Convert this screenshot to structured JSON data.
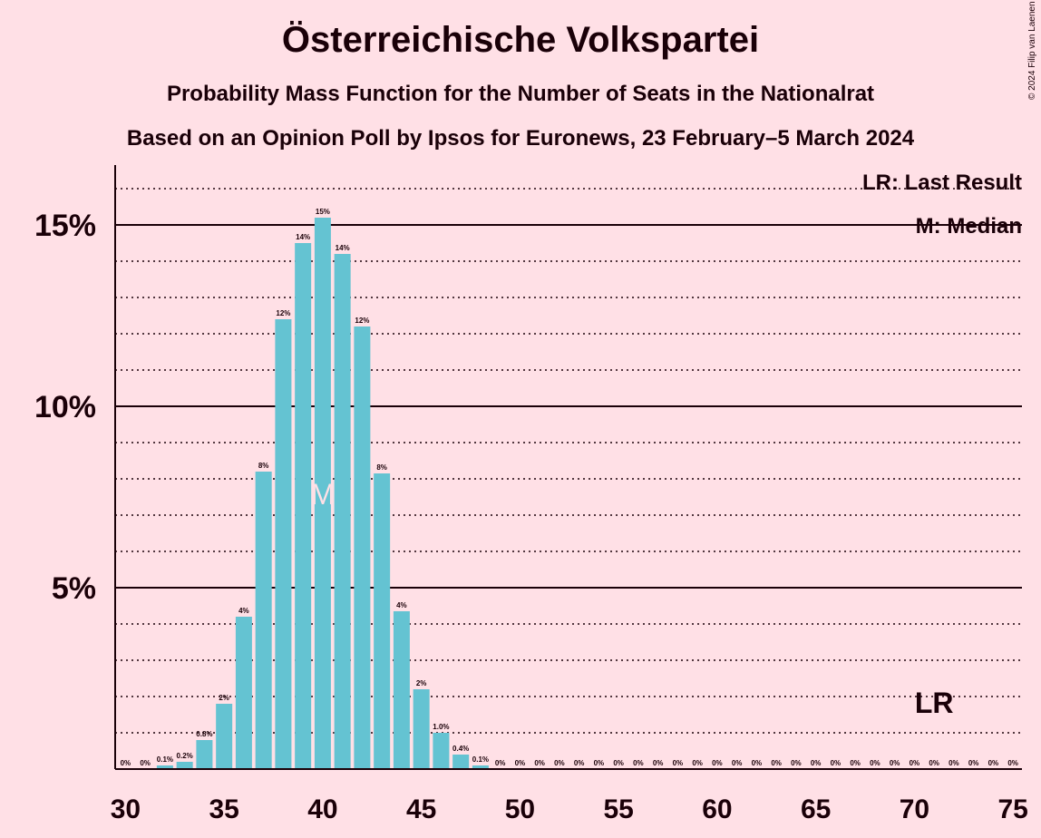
{
  "title": "Österreichische Volkspartei",
  "subtitle": "Probability Mass Function for the Number of Seats in the Nationalrat",
  "subtitle2": "Based on an Opinion Poll by Ipsos for Euronews, 23 February–5 March 2024",
  "copyright": "© 2024 Filip van Laenen",
  "legend": {
    "last_result": "LR: Last Result",
    "median": "M: Median"
  },
  "markers": {
    "median_label": "M",
    "last_result_label": "LR",
    "median_seat": 40,
    "last_result_seat": 71
  },
  "colors": {
    "background": "#FFE0E6",
    "bar": "#64C3D2",
    "text": "#1a0008"
  },
  "chart_data": {
    "type": "bar",
    "x": [
      30,
      31,
      32,
      33,
      34,
      35,
      36,
      37,
      38,
      39,
      40,
      41,
      42,
      43,
      44,
      45,
      46,
      47,
      48,
      49,
      50,
      51,
      52,
      53,
      54,
      55,
      56,
      57,
      58,
      59,
      60,
      61,
      62,
      63,
      64,
      65,
      66,
      67,
      68,
      69,
      70,
      71,
      72,
      73,
      74,
      75
    ],
    "values": [
      0,
      0,
      0.1,
      0.2,
      0.8,
      1.8,
      4.2,
      8.2,
      12.4,
      14.5,
      15.2,
      14.2,
      12.2,
      8.15,
      4.35,
      2.2,
      1.0,
      0.4,
      0.1,
      0,
      0,
      0,
      0,
      0,
      0,
      0,
      0,
      0,
      0,
      0,
      0,
      0,
      0,
      0,
      0,
      0,
      0,
      0,
      0,
      0,
      0,
      0,
      0,
      0,
      0,
      0
    ],
    "labels": [
      "0%",
      "0%",
      "0.1%",
      "0.2%",
      "0.8%",
      "2%",
      "4%",
      "8%",
      "12%",
      "14%",
      "15%",
      "14%",
      "12%",
      "8%",
      "4%",
      "2%",
      "1.0%",
      "0.4%",
      "0.1%",
      "0%",
      "0%",
      "0%",
      "0%",
      "0%",
      "0%",
      "0%",
      "0%",
      "0%",
      "0%",
      "0%",
      "0%",
      "0%",
      "0%",
      "0%",
      "0%",
      "0%",
      "0%",
      "0%",
      "0%",
      "0%",
      "0%",
      "0%",
      "0%",
      "0%",
      "0%",
      "0%"
    ],
    "xticks": [
      "30",
      "35",
      "40",
      "45",
      "50",
      "55",
      "60",
      "65",
      "70",
      "75"
    ],
    "xtick_values": [
      30,
      35,
      40,
      45,
      50,
      55,
      60,
      65,
      70,
      75
    ],
    "yticks": [
      "5%",
      "10%",
      "15%"
    ],
    "ytick_values": [
      5,
      10,
      15
    ],
    "ylim": [
      0,
      16.5
    ],
    "xlim": [
      29.5,
      75.5
    ],
    "grid": "major solid every 5%, dotted every 1%",
    "unit": "%"
  }
}
